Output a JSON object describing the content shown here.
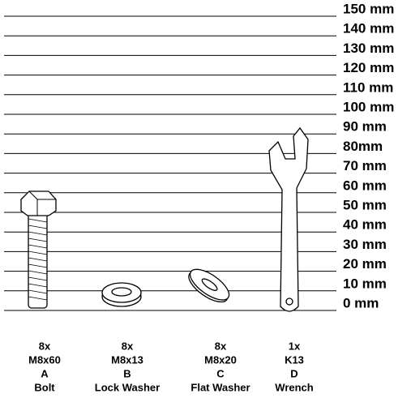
{
  "scale": [
    "150 mm",
    "140 mm",
    "130 mm",
    "120 mm",
    "110 mm",
    "100 mm",
    "90 mm",
    "80mm",
    "70 mm",
    "60 mm",
    "50 mm",
    "40 mm",
    "30 mm",
    "20 mm",
    "10 mm",
    "0 mm"
  ],
  "parts": [
    {
      "qty": "8x",
      "size": "M8x60",
      "letter": "A",
      "name": "Bolt"
    },
    {
      "qty": "8x",
      "size": "M8x13",
      "letter": "B",
      "name": "Lock Washer"
    },
    {
      "qty": "8x",
      "size": "M8x20",
      "letter": "C",
      "name": "Flat Washer"
    },
    {
      "qty": "1x",
      "size": "K13",
      "letter": "D",
      "name": "Wrench"
    }
  ]
}
